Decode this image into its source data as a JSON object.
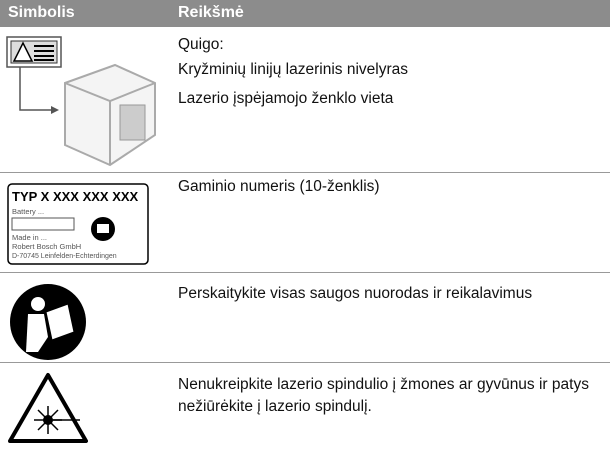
{
  "table": {
    "header": [
      "Simbolis",
      "Reikšmė"
    ],
    "rows": [
      {
        "meaning": [
          "Quigo:",
          "Kryžminių linijų lazerinis nivelyras",
          "Lazerio įspėjamojo ženklo vieta"
        ]
      },
      {
        "label": {
          "type": "TYP X XXX XXX XXX",
          "battery": "Battery ...",
          "made": "Made in ...",
          "company": "Robert Bosch GmbH",
          "address": "D-70745 Leinfelden-Echterdingen"
        },
        "meaning": [
          "Gaminio numeris (10-ženklis)"
        ]
      },
      {
        "meaning": [
          "Perskaitykite visas saugos nuorodas ir reikalavimus"
        ]
      },
      {
        "meaning": [
          "Nenukreipkite lazerio spindulio į žmones ar gyvūnus ir patys nežiūrėkite į lazerio spindulį."
        ]
      }
    ]
  }
}
